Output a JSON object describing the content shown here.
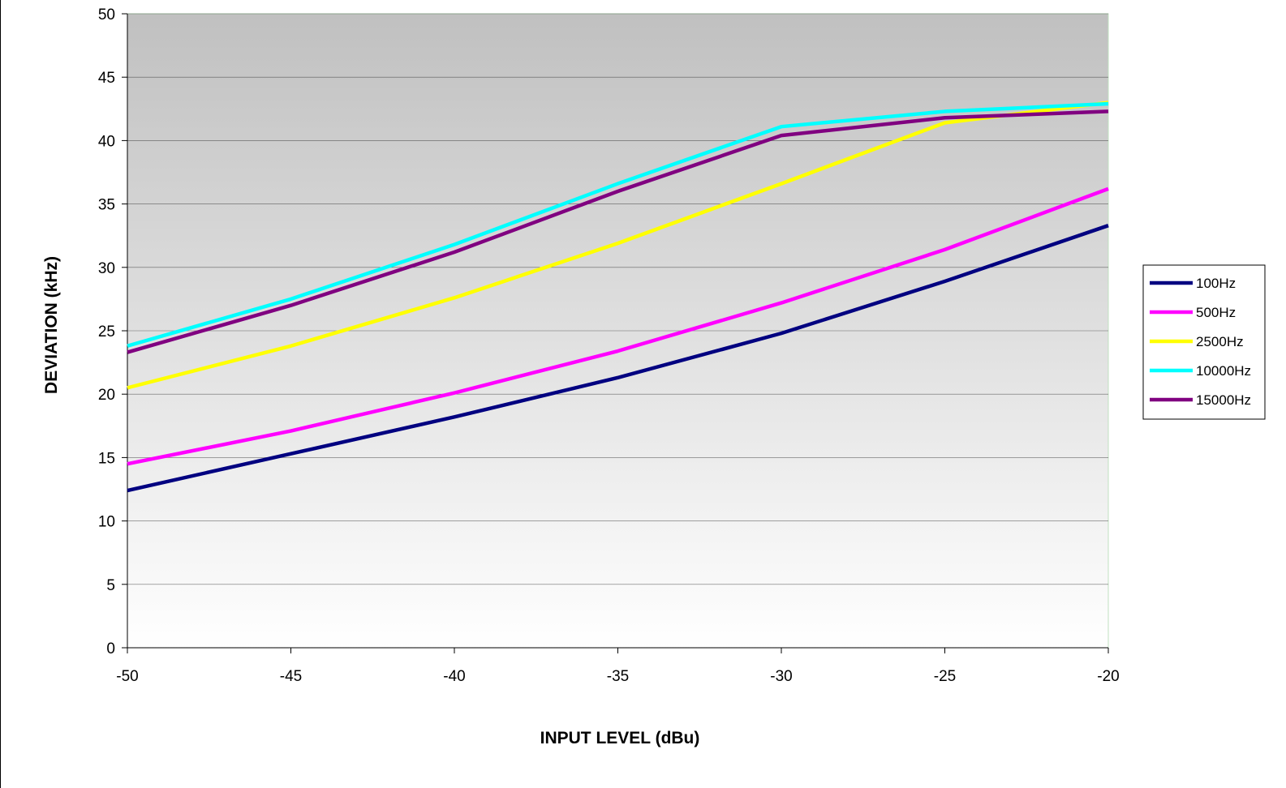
{
  "chart_data": {
    "type": "line",
    "xlabel": "INPUT LEVEL (dBu)",
    "ylabel": "DEVIATION (kHz)",
    "xlim": [
      -50,
      -20
    ],
    "ylim": [
      0,
      50
    ],
    "x_ticks": [
      "-50",
      "-45",
      "-40",
      "-35",
      "-30",
      "-25",
      "-20"
    ],
    "y_ticks": [
      "0",
      "5",
      "10",
      "15",
      "20",
      "25",
      "30",
      "35",
      "40",
      "45",
      "50"
    ],
    "grid": "horizontal",
    "legend_position": "right",
    "plot_background": "gradient grey to white",
    "x": [
      -50,
      -45,
      -40,
      -35,
      -30,
      -25,
      -20
    ],
    "series": [
      {
        "name": "100Hz",
        "color": "#000080",
        "values": [
          12.4,
          15.3,
          18.2,
          21.3,
          24.8,
          28.9,
          33.3
        ]
      },
      {
        "name": "500Hz",
        "color": "#ff00ff",
        "values": [
          14.5,
          17.1,
          20.1,
          23.4,
          27.2,
          31.4,
          36.2
        ]
      },
      {
        "name": "2500Hz",
        "color": "#ffff00",
        "values": [
          20.5,
          23.8,
          27.6,
          31.9,
          36.6,
          41.4,
          43.0
        ]
      },
      {
        "name": "10000Hz",
        "color": "#00ffff",
        "values": [
          23.8,
          27.5,
          31.8,
          36.6,
          41.1,
          42.3,
          42.9
        ]
      },
      {
        "name": "15000Hz",
        "color": "#800080",
        "values": [
          23.3,
          27.0,
          31.2,
          36.0,
          40.4,
          41.8,
          42.3
        ]
      }
    ]
  }
}
